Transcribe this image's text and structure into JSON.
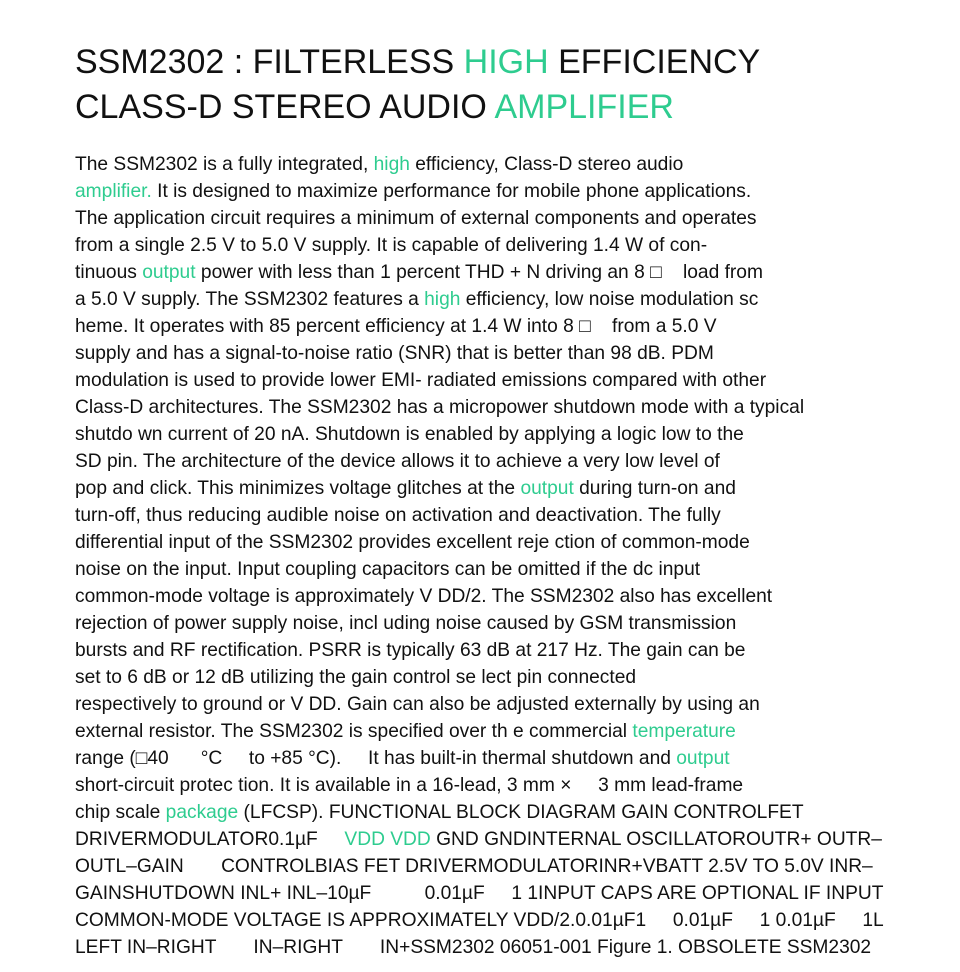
{
  "document": {
    "highlight_color": "#2ecc8f",
    "text_color": "#111111",
    "title_lines": [
      [
        {
          "t": "SSM2302 : FILTERLESS ",
          "hl": false
        },
        {
          "t": "HIGH",
          "hl": true
        },
        {
          "t": " EFFICIENCY",
          "hl": false
        }
      ],
      [
        {
          "t": "CLASS-D STEREO AUDIO ",
          "hl": false
        },
        {
          "t": "AMPLIFIER",
          "hl": true
        }
      ]
    ],
    "body_lines": [
      [
        {
          "t": "The SSM2302 is a fully integrated, ",
          "hl": false
        },
        {
          "t": "high",
          "hl": true
        },
        {
          "t": " efficiency, Class-D stereo audio",
          "hl": false
        }
      ],
      [
        {
          "t": "amplifier.",
          "hl": true
        },
        {
          "t": " It is designed to maximize performance for mobile phone applications.",
          "hl": false
        }
      ],
      [
        {
          "t": "The application circuit requires a minimum of external components and operates",
          "hl": false
        }
      ],
      [
        {
          "t": "from a single 2.5 V to 5.0 V supply. It is capable of delivering 1.4 W of con-",
          "hl": false
        }
      ],
      [
        {
          "t": "tinuous ",
          "hl": false
        },
        {
          "t": "output",
          "hl": true
        },
        {
          "t": " power with less than 1 percent THD + N driving an 8 □    load from",
          "hl": false
        }
      ],
      [
        {
          "t": "a 5.0 V supply. The SSM2302 features a ",
          "hl": false
        },
        {
          "t": "high",
          "hl": true
        },
        {
          "t": " efficiency, low noise modulation sc",
          "hl": false
        }
      ],
      [
        {
          "t": "heme. It operates with 85 percent efficiency at 1.4 W into 8 □    from a 5.0 V",
          "hl": false
        }
      ],
      [
        {
          "t": "supply and has a signal-to-noise ratio (SNR) that is better than 98 dB. PDM",
          "hl": false
        }
      ],
      [
        {
          "t": "modulation is used to provide lower EMI- radiated emissions compared with other",
          "hl": false
        }
      ],
      [
        {
          "t": "Class-D architectures. The SSM2302 has a micropower shutdown mode with a typical",
          "hl": false
        }
      ],
      [
        {
          "t": "shutdo wn current of 20 nA. Shutdown is enabled by applying a logic low to the",
          "hl": false
        }
      ],
      [
        {
          "t": "SD pin. The architecture of the device allows it to achieve a very low level of",
          "hl": false
        }
      ],
      [
        {
          "t": "pop and click. This minimizes voltage glitches at the ",
          "hl": false
        },
        {
          "t": "output",
          "hl": true
        },
        {
          "t": " during turn-on and",
          "hl": false
        }
      ],
      [
        {
          "t": "turn-off, thus reducing audible noise on activation and deactivation. The fully",
          "hl": false
        }
      ],
      [
        {
          "t": "differential input of the SSM2302 provides excellent reje ction of common-mode",
          "hl": false
        }
      ],
      [
        {
          "t": "noise on the input. Input coupling capacitors can be omitted if the dc input",
          "hl": false
        }
      ],
      [
        {
          "t": "common-mode voltage is approximately V DD/2. The SSM2302 also has excellent",
          "hl": false
        }
      ],
      [
        {
          "t": "rejection of power supply noise, incl uding noise caused by GSM transmission",
          "hl": false
        }
      ],
      [
        {
          "t": "bursts and RF rectification. PSRR is typically 63 dB at 217 Hz. The gain can be",
          "hl": false
        }
      ],
      [
        {
          "t": "set to 6 dB or 12 dB utilizing the gain control se lect pin connected",
          "hl": false
        }
      ],
      [
        {
          "t": "respectively to ground or V DD. Gain can also be adjusted externally by using an",
          "hl": false
        }
      ],
      [
        {
          "t": "external resistor. The SSM2302 is specified over th e commercial ",
          "hl": false
        },
        {
          "t": "temperature",
          "hl": true
        }
      ],
      [
        {
          "t": "range (□40      °C     to +85 °C).     It has built-in thermal shutdown and ",
          "hl": false
        },
        {
          "t": "output",
          "hl": true
        }
      ],
      [
        {
          "t": "short-circuit protec tion. It is available in a 16-lead, 3 mm ×     3 mm lead-frame",
          "hl": false
        }
      ],
      [
        {
          "t": "chip scale ",
          "hl": false
        },
        {
          "t": "package",
          "hl": true
        },
        {
          "t": " (LFCSP). FUNCTIONAL BLOCK DIAGRAM GAIN CONTROLFET",
          "hl": false
        }
      ],
      [
        {
          "t": "DRIVERMODULATOR0.1µF     ",
          "hl": false
        },
        {
          "t": "VDD VDD",
          "hl": true
        },
        {
          "t": " GND GNDINTERNAL OSCILLATOROUTR+ OUTR–",
          "hl": false
        }
      ],
      [
        {
          "t": "OUTL–GAIN       CONTROLBIAS FET DRIVERMODULATORINR+VBATT 2.5V TO 5.0V INR–",
          "hl": false
        }
      ],
      [
        {
          "t": "GAINSHUTDOWN INL+ INL–10µF          0.01µF     1 1INPUT CAPS ARE OPTIONAL IF INPUT",
          "hl": false
        }
      ],
      [
        {
          "t": "COMMON-MODE VOLTAGE IS APPROXIMATELY VDD/2.0.01µF1     0.01µF     1 0.01µF     1L",
          "hl": false
        }
      ],
      [
        {
          "t": "LEFT IN–RIGHT       IN–RIGHT       IN+SSM2302 06051-001 Figure 1. OBSOLETE SSM2302",
          "hl": false
        }
      ]
    ]
  }
}
